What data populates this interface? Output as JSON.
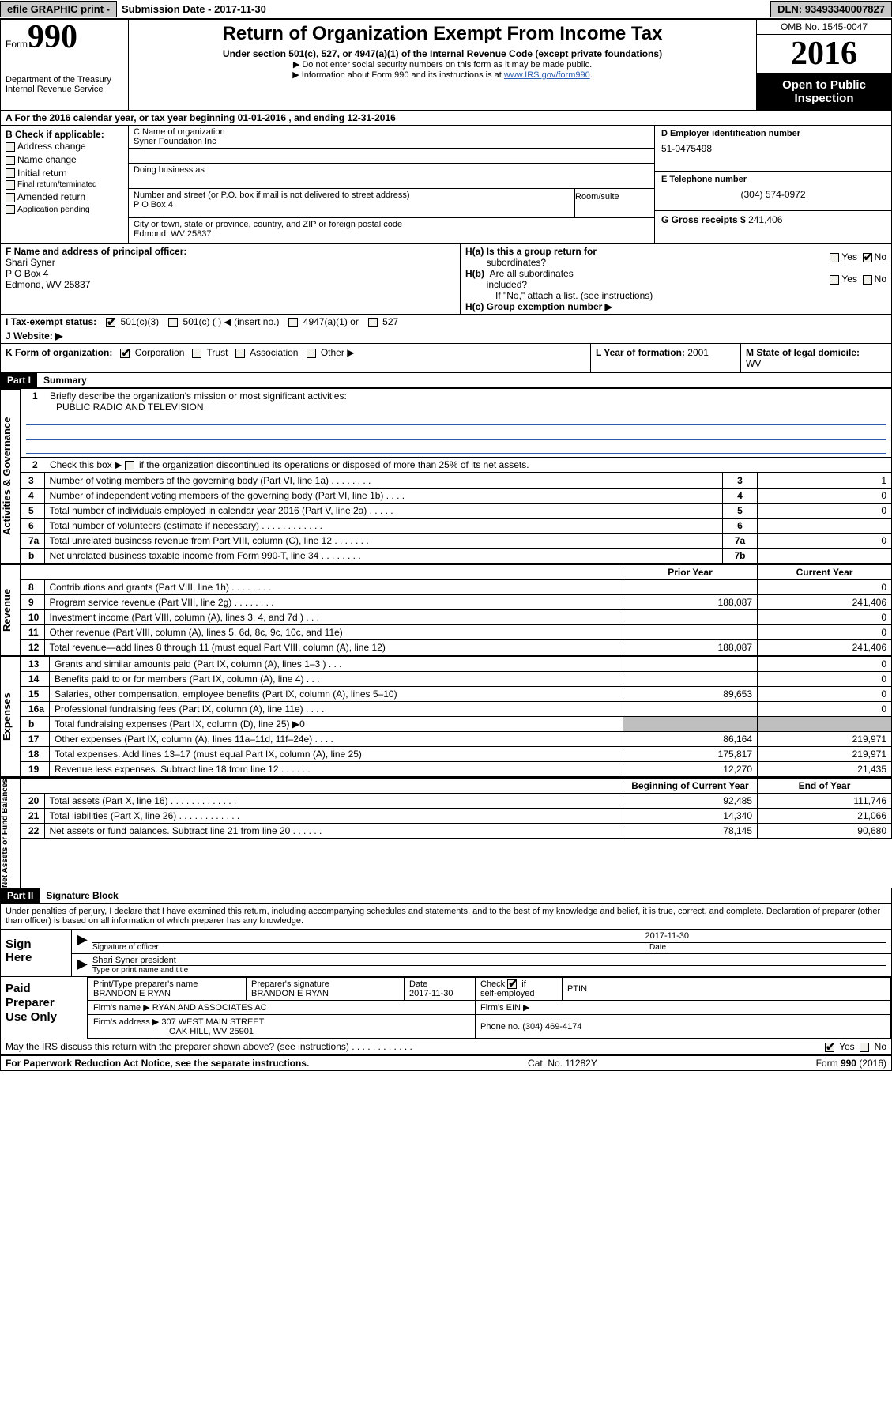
{
  "topbar": {
    "efile": "efile GRAPHIC print -",
    "submission_label": "Submission Date -",
    "submission_date": "2017-11-30",
    "dln_label": "DLN:",
    "dln": "93493340007827"
  },
  "header": {
    "form_label": "Form",
    "form_number": "990",
    "dept1": "Department of the Treasury",
    "dept2": "Internal Revenue Service",
    "title": "Return of Organization Exempt From Income Tax",
    "subtitle": "Under section 501(c), 527, or 4947(a)(1) of the Internal Revenue Code (except private foundations)",
    "note1": "▶ Do not enter social security numbers on this form as it may be made public.",
    "note2_a": "▶ Information about Form 990 and its instructions is at ",
    "note2_link": "www.IRS.gov/form990",
    "note2_b": ".",
    "omb": "OMB No. 1545-0047",
    "year": "2016",
    "open1": "Open to Public",
    "open2": "Inspection"
  },
  "sectionA": {
    "text_a": "A  For the 2016 calendar year, or tax year beginning ",
    "begin": "01-01-2016",
    "text_b": "   , and ending ",
    "end": "12-31-2016"
  },
  "colB": {
    "label": "B Check if applicable:",
    "opts": [
      "Address change",
      "Name change",
      "Initial return",
      "Final return/terminated",
      "Amended return",
      "Application pending"
    ]
  },
  "colC": {
    "name_lab": "C Name of organization",
    "name": "Syner Foundation Inc",
    "dba_lab": "Doing business as",
    "addr_lab": "Number and street (or P.O. box if mail is not delivered to street address)",
    "addr": "P O Box 4",
    "room_lab": "Room/suite",
    "city_lab": "City or town, state or province, country, and ZIP or foreign postal code",
    "city": "Edmond, WV 25837"
  },
  "colD": {
    "ein_lab": "D Employer identification number",
    "ein": "51-0475498",
    "tel_lab": "E Telephone number",
    "tel": "(304) 574-0972",
    "gross_lab": "G Gross receipts $",
    "gross": "241,406"
  },
  "rowF": {
    "lab": "F  Name and address of principal officer:",
    "name": "Shari Syner",
    "addr1": "P O Box 4",
    "addr2": "Edmond, WV  25837"
  },
  "rowH": {
    "ha_lab": "H(a)  Is this a group return for",
    "ha_lab2": "subordinates?",
    "hb_lab": "H(b)  Are all subordinates included?",
    "hb_note": "If \"No,\" attach a list. (see instructions)",
    "hc_lab": "H(c)  Group exemption number ▶",
    "yes": "Yes",
    "no": "No"
  },
  "rowI": {
    "lab": "I  Tax-exempt status:",
    "o1": "501(c)(3)",
    "o2": "501(c) (   ) ◀ (insert no.)",
    "o3": "4947(a)(1) or",
    "o4": "527"
  },
  "rowJ": {
    "lab": "J  Website: ▶"
  },
  "rowK": {
    "lab": "K Form of organization:",
    "o1": "Corporation",
    "o2": "Trust",
    "o3": "Association",
    "o4": "Other ▶"
  },
  "rowL": {
    "lab": "L Year of formation:",
    "val": "2001"
  },
  "rowM": {
    "lab": "M State of legal domicile:",
    "val": "WV"
  },
  "partI": {
    "bar": "Part I",
    "title": "Summary"
  },
  "summary": {
    "side1": "Activities & Governance",
    "side2": "Revenue",
    "side3": "Expenses",
    "side4": "Net Assets or Fund Balances",
    "l1_lab": "Briefly describe the organization's mission or most significant activities:",
    "l1_val": "PUBLIC RADIO AND TELEVISION",
    "l2": "Check this box ▶        if the organization discontinued its operations or disposed of more than 25% of its net assets.",
    "rows_gov": [
      {
        "n": "3",
        "t": "Number of voting members of the governing body (Part VI, line 1a)   .   .   .   .   .   .   .   .",
        "c": "3",
        "v": "1"
      },
      {
        "n": "4",
        "t": "Number of independent voting members of the governing body (Part VI, line 1b)    .   .   .   .",
        "c": "4",
        "v": "0"
      },
      {
        "n": "5",
        "t": "Total number of individuals employed in calendar year 2016 (Part V, line 2a)   .   .   .   .   .",
        "c": "5",
        "v": "0"
      },
      {
        "n": "6",
        "t": "Total number of volunteers (estimate if necessary)   .   .   .   .   .   .   .   .   .   .   .   .",
        "c": "6",
        "v": ""
      },
      {
        "n": "7a",
        "t": "Total unrelated business revenue from Part VIII, column (C), line 12   .   .   .   .   .   .   .",
        "c": "7a",
        "v": "0"
      },
      {
        "n": "b",
        "t": "Net unrelated business taxable income from Form 990-T, line 34   .   .   .   .   .   .   .   .",
        "c": "7b",
        "v": ""
      }
    ],
    "hdr_prior": "Prior Year",
    "hdr_current": "Current Year",
    "rows_rev": [
      {
        "n": "8",
        "t": "Contributions and grants (Part VIII, line 1h)    .   .   .   .   .   .   .   .",
        "p": "",
        "c": "0"
      },
      {
        "n": "9",
        "t": "Program service revenue (Part VIII, line 2g)    .   .   .   .   .   .   .   .",
        "p": "188,087",
        "c": "241,406"
      },
      {
        "n": "10",
        "t": "Investment income (Part VIII, column (A), lines 3, 4, and 7d )   .   .   .",
        "p": "",
        "c": "0"
      },
      {
        "n": "11",
        "t": "Other revenue (Part VIII, column (A), lines 5, 6d, 8c, 9c, 10c, and 11e)",
        "p": "",
        "c": "0"
      },
      {
        "n": "12",
        "t": "Total revenue—add lines 8 through 11 (must equal Part VIII, column (A), line 12)",
        "p": "188,087",
        "c": "241,406"
      }
    ],
    "rows_exp": [
      {
        "n": "13",
        "t": "Grants and similar amounts paid (Part IX, column (A), lines 1–3 )   .   .   .",
        "p": "",
        "c": "0"
      },
      {
        "n": "14",
        "t": "Benefits paid to or for members (Part IX, column (A), line 4)   .   .   .",
        "p": "",
        "c": "0"
      },
      {
        "n": "15",
        "t": "Salaries, other compensation, employee benefits (Part IX, column (A), lines 5–10)",
        "p": "89,653",
        "c": "0"
      },
      {
        "n": "16a",
        "t": "Professional fundraising fees (Part IX, column (A), line 11e)   .   .   .   .",
        "p": "",
        "c": "0"
      },
      {
        "n": "b",
        "t": "Total fundraising expenses (Part IX, column (D), line 25) ▶0",
        "p": "GREY",
        "c": "GREY"
      },
      {
        "n": "17",
        "t": "Other expenses (Part IX, column (A), lines 11a–11d, 11f–24e)   .   .   .   .",
        "p": "86,164",
        "c": "219,971"
      },
      {
        "n": "18",
        "t": "Total expenses. Add lines 13–17 (must equal Part IX, column (A), line 25)",
        "p": "175,817",
        "c": "219,971"
      },
      {
        "n": "19",
        "t": "Revenue less expenses. Subtract line 18 from line 12   .   .   .   .   .   .",
        "p": "12,270",
        "c": "21,435"
      }
    ],
    "hdr_begin": "Beginning of Current Year",
    "hdr_end": "End of Year",
    "rows_net": [
      {
        "n": "20",
        "t": "Total assets (Part X, line 16)   .   .   .   .   .   .   .   .   .   .   .   .   .",
        "p": "92,485",
        "c": "111,746"
      },
      {
        "n": "21",
        "t": "Total liabilities (Part X, line 26)   .   .   .   .   .   .   .   .   .   .   .   .",
        "p": "14,340",
        "c": "21,066"
      },
      {
        "n": "22",
        "t": "Net assets or fund balances. Subtract line 21 from line 20 .   .   .   .   .   .",
        "p": "78,145",
        "c": "90,680"
      }
    ]
  },
  "partII": {
    "bar": "Part II",
    "title": "Signature Block"
  },
  "sig": {
    "decl": "Under penalties of perjury, I declare that I have examined this return, including accompanying schedules and statements, and to the best of my knowledge and belief, it is true, correct, and complete. Declaration of preparer (other than officer) is based on all information of which preparer has any knowledge.",
    "sign_here": "Sign Here",
    "sig_officer_lab": "Signature of officer",
    "sig_date": "2017-11-30",
    "date_lab": "Date",
    "typed": "Shari Syner president",
    "typed_lab": "Type or print name and title",
    "paid": "Paid Preparer Use Only",
    "p_name_lab": "Print/Type preparer's name",
    "p_name": "BRANDON E RYAN",
    "p_sig_lab": "Preparer's signature",
    "p_sig": "BRANDON E RYAN",
    "p_date_lab": "Date",
    "p_date": "2017-11-30",
    "p_check_lab": "Check         if self-employed",
    "ptin_lab": "PTIN",
    "firm_name_lab": "Firm's name      ▶",
    "firm_name": "RYAN AND ASSOCIATES AC",
    "firm_ein_lab": "Firm's EIN ▶",
    "firm_addr_lab": "Firm's address ▶",
    "firm_addr1": "307 WEST MAIN STREET",
    "firm_addr2": "OAK HILL, WV  25901",
    "phone_lab": "Phone no.",
    "phone": "(304) 469-4174",
    "discuss": "May the IRS discuss this return with the preparer shown above? (see instructions)   .   .   .   .   .   .   .   .   .   .   .   .",
    "yes": "Yes",
    "no": "No"
  },
  "footer": {
    "l": "For Paperwork Reduction Act Notice, see the separate instructions.",
    "m": "Cat. No. 11282Y",
    "r": "Form 990 (2016)"
  },
  "colors": {
    "grey": "#c8c8c8",
    "cellgrey": "#bfbfbf",
    "link": "#2a5db0"
  }
}
